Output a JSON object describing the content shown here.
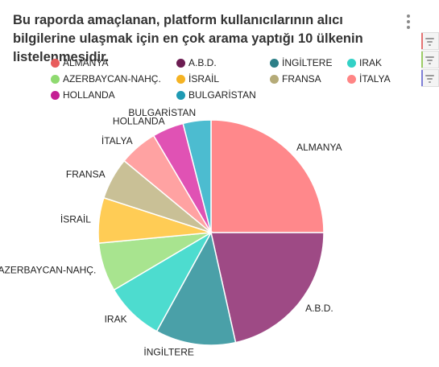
{
  "title": "Bu raporda amaçlanan, platform kullanıcılarının alıcı bilgilerine ulaşmak için en çok arama yaptığı 10 ülkenin listelenmesidir.",
  "menu_icon": "more-vertical-icon",
  "filter_buttons": [
    {
      "icon": "filter-icon",
      "accent": "#e57373"
    },
    {
      "icon": "filter-icon",
      "accent": "#9ccc65"
    },
    {
      "icon": "filter-icon",
      "accent": "#7e7ed6"
    }
  ],
  "chart_data": {
    "type": "pie",
    "title": "Bu raporda amaçlanan, platform kullanıcılarının alıcı bilgilerine ulaşmak için en çok arama yaptığı 10 ülkenin listelenmesidir.",
    "legend_position": "top",
    "slices": [
      {
        "label": "ALMANYA",
        "value": 25.0,
        "color": "#ff888b"
      },
      {
        "label": "A.B.D.",
        "value": 21.5,
        "color": "#9e4a85"
      },
      {
        "label": "İNGİLTERE",
        "value": 11.5,
        "color": "#4aa0a8"
      },
      {
        "label": "IRAK",
        "value": 8.5,
        "color": "#4ddccf"
      },
      {
        "label": "AZERBAYCAN-NAHÇ.",
        "value": 7.0,
        "color": "#a8e48f"
      },
      {
        "label": "İSRAİL",
        "value": 6.5,
        "color": "#ffcc55"
      },
      {
        "label": "FRANSA",
        "value": 6.0,
        "color": "#c9c096"
      },
      {
        "label": "İTALYA",
        "value": 5.5,
        "color": "#ffa2a2"
      },
      {
        "label": "HOLLANDA",
        "value": 4.5,
        "color": "#e052b4"
      },
      {
        "label": "BULGARİSTAN",
        "value": 4.0,
        "color": "#4cbcd0"
      }
    ],
    "legend": [
      {
        "label": "ALMANYA",
        "color": "#e85c5c"
      },
      {
        "label": "A.B.D.",
        "color": "#6c1d52"
      },
      {
        "label": "İNGİLTERE",
        "color": "#2c7f87"
      },
      {
        "label": "IRAK",
        "color": "#33d1c6"
      },
      {
        "label": "AZERBAYCAN-NAHÇ.",
        "color": "#8fda70"
      },
      {
        "label": "İSRAİL",
        "color": "#f5b323"
      },
      {
        "label": "FRANSA",
        "color": "#b5ab78"
      },
      {
        "label": "İTALYA",
        "color": "#ff8585"
      },
      {
        "label": "HOLLANDA",
        "color": "#c41e93"
      },
      {
        "label": "BULGARİSTAN",
        "color": "#1f9ab3"
      }
    ]
  }
}
